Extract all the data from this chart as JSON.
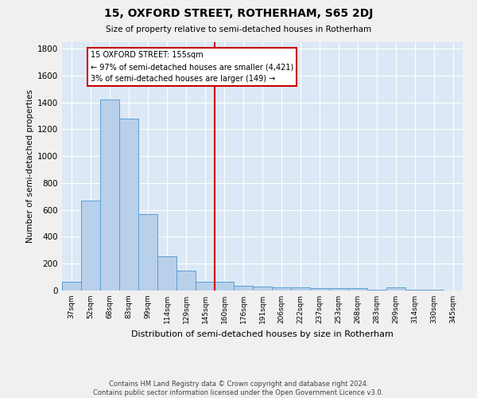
{
  "title": "15, OXFORD STREET, ROTHERHAM, S65 2DJ",
  "subtitle": "Size of property relative to semi-detached houses in Rotherham",
  "xlabel": "Distribution of semi-detached houses by size in Rotherham",
  "ylabel": "Number of semi-detached properties",
  "footer_line1": "Contains HM Land Registry data © Crown copyright and database right 2024.",
  "footer_line2": "Contains public sector information licensed under the Open Government Licence v3.0.",
  "categories": [
    "37sqm",
    "52sqm",
    "68sqm",
    "83sqm",
    "99sqm",
    "114sqm",
    "129sqm",
    "145sqm",
    "160sqm",
    "176sqm",
    "191sqm",
    "206sqm",
    "222sqm",
    "237sqm",
    "253sqm",
    "268sqm",
    "283sqm",
    "299sqm",
    "314sqm",
    "330sqm",
    "345sqm"
  ],
  "values": [
    67,
    670,
    1420,
    1280,
    570,
    252,
    150,
    67,
    67,
    35,
    28,
    25,
    22,
    20,
    20,
    20,
    3,
    22,
    3,
    3,
    0
  ],
  "bar_color": "#b8d0ea",
  "bar_edge_color": "#5a9fd4",
  "background_color": "#dce8f5",
  "grid_color": "#ffffff",
  "annotation_text": "15 OXFORD STREET: 155sqm\n← 97% of semi-detached houses are smaller (4,421)\n3% of semi-detached houses are larger (149) →",
  "annotation_box_color": "#ffffff",
  "annotation_box_edge_color": "#cc0000",
  "red_line_color": "#cc0000",
  "ylim": [
    0,
    1850
  ],
  "yticks": [
    0,
    200,
    400,
    600,
    800,
    1000,
    1200,
    1400,
    1600,
    1800
  ]
}
